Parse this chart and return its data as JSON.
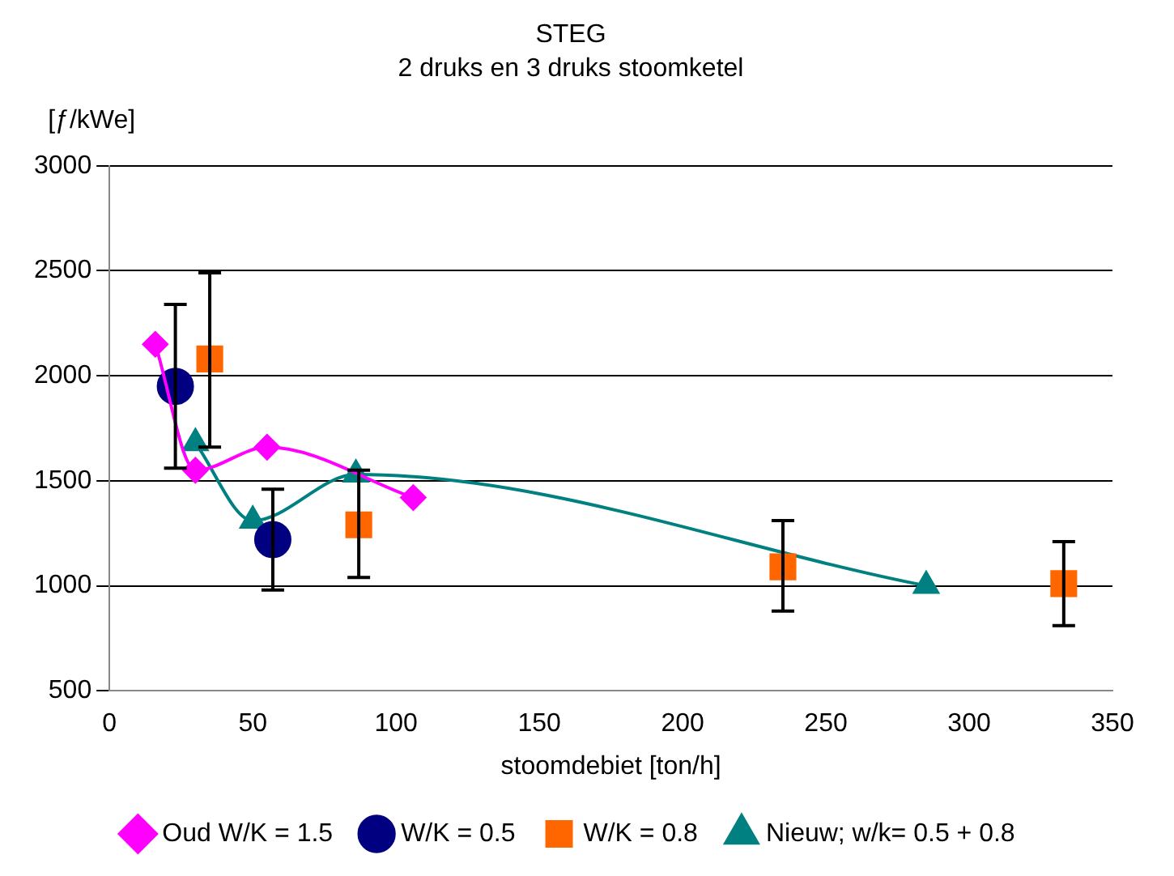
{
  "chart_data": {
    "type": "scatter",
    "title": "STEG",
    "subtitle": "2 druks en 3 druks stoomketel",
    "xlabel": "stoomdebiet [ton/h]",
    "ylabel": "[ƒ/kWe]",
    "xlim": [
      0,
      350
    ],
    "xticks": [
      0,
      50,
      100,
      150,
      200,
      250,
      300,
      350
    ],
    "ylim": [
      500,
      3000
    ],
    "yticks": [
      500,
      1000,
      1500,
      2000,
      2500,
      3000
    ],
    "grid": "y",
    "legend": "bottom",
    "series": [
      {
        "name": "Oud W/K = 1.5",
        "type": "line",
        "color": "#ff00ff",
        "marker": "diamond",
        "x": [
          16,
          30,
          55,
          106
        ],
        "values": [
          2150,
          1550,
          1660,
          1420
        ]
      },
      {
        "name": "W/K = 0.5",
        "type": "scatter",
        "color": "#000080",
        "marker": "circle",
        "x": [
          23,
          57
        ],
        "values": [
          1950,
          1220
        ],
        "errors": [
          [
            1560,
            2340
          ],
          [
            980,
            1460
          ]
        ]
      },
      {
        "name": "W/K = 0.8",
        "type": "scatter",
        "color": "#ff6600",
        "marker": "square",
        "x": [
          35,
          87,
          235,
          333
        ],
        "values": [
          2080,
          1290,
          1090,
          1010
        ],
        "errors": [
          [
            1660,
            2490
          ],
          [
            1040,
            1550
          ],
          [
            880,
            1310
          ],
          [
            810,
            1210
          ]
        ]
      },
      {
        "name": "Nieuw; w/k= 0.5 + 0.8",
        "type": "line",
        "color": "#008080",
        "marker": "triangle",
        "x": [
          30,
          50,
          86,
          285
        ],
        "values": [
          1680,
          1310,
          1530,
          1000
        ]
      }
    ]
  }
}
